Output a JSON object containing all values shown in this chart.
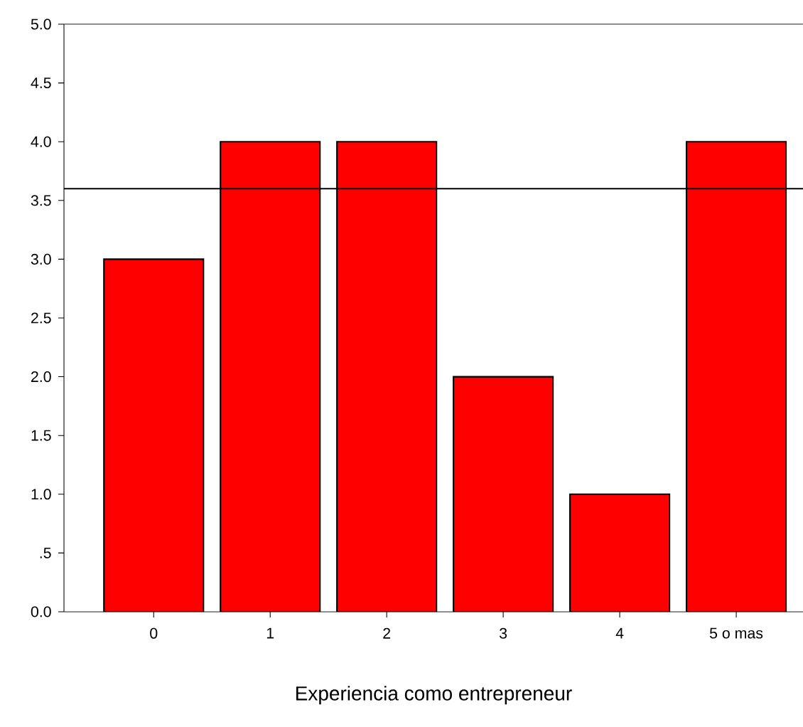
{
  "chart_data": {
    "type": "bar",
    "xlabel": "Experiencia como entrepreneur",
    "categories": [
      "0",
      "1",
      "2",
      "3",
      "4",
      "5 o mas"
    ],
    "values": [
      3,
      4,
      4,
      2,
      1,
      4
    ],
    "color": "#ff0000",
    "ylim": [
      0,
      5
    ],
    "yticks": [
      {
        "value": 0,
        "label": "0.0"
      },
      {
        "value": 0.5,
        "label": ".5"
      },
      {
        "value": 1,
        "label": "1.0"
      },
      {
        "value": 1.5,
        "label": "1.5"
      },
      {
        "value": 2,
        "label": "2.0"
      },
      {
        "value": 2.5,
        "label": "2.5"
      },
      {
        "value": 3,
        "label": "3.0"
      },
      {
        "value": 3.5,
        "label": "3.5"
      },
      {
        "value": 4,
        "label": "4.0"
      },
      {
        "value": 4.5,
        "label": "4.5"
      },
      {
        "value": 5,
        "label": "5.0"
      }
    ],
    "ref_lines": [
      {
        "axis": "y",
        "value": 3.6,
        "label": null
      }
    ]
  }
}
